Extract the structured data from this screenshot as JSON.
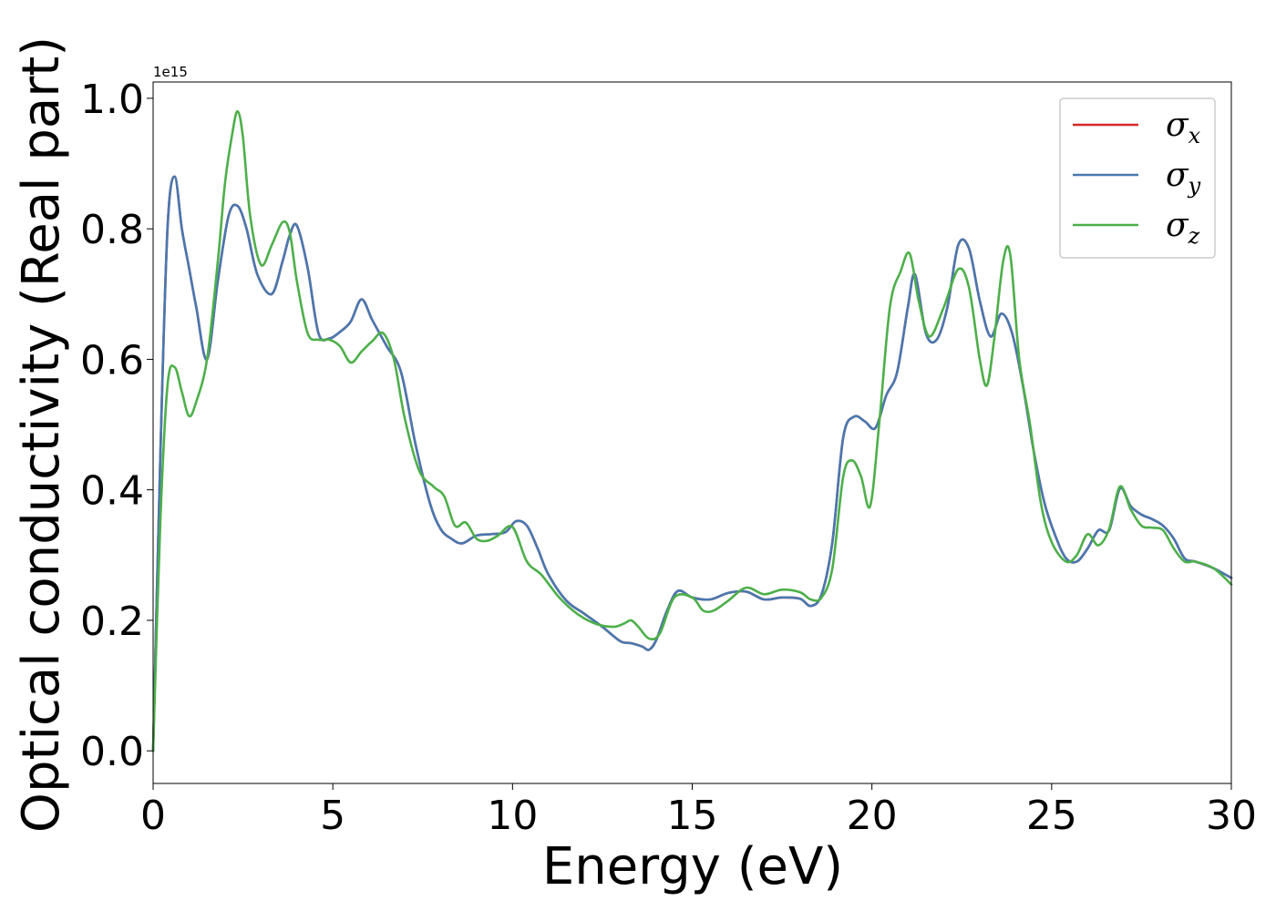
{
  "chart_data": {
    "type": "line",
    "xlabel": "Energy (eV)",
    "ylabel": "Optical conductivity (Real part)",
    "y_offset_text": "1e15",
    "xlim": [
      0,
      30
    ],
    "ylim": [
      -0.05,
      1.025
    ],
    "xticks": [
      0,
      5,
      10,
      15,
      20,
      25,
      30
    ],
    "yticks": [
      0.0,
      0.2,
      0.4,
      0.6,
      0.8,
      1.0
    ],
    "ytick_labels": [
      "0.0",
      "0.2",
      "0.4",
      "0.6",
      "0.8",
      "1.0"
    ],
    "grid": false,
    "legend_position": "top-right",
    "series": [
      {
        "name": "σx",
        "legend_base": "σ",
        "legend_sub": "x",
        "color": "#d62728",
        "x": [
          0,
          0.2,
          0.4,
          0.6,
          0.8,
          1.0,
          1.2,
          1.5,
          1.8,
          2.1,
          2.35,
          2.6,
          2.9,
          3.3,
          3.6,
          3.8,
          4.0,
          4.3,
          4.6,
          4.9,
          5.2,
          5.5,
          5.8,
          6.1,
          6.5,
          6.9,
          7.3,
          7.7,
          8.0,
          8.3,
          8.6,
          9.0,
          9.4,
          9.8,
          10.1,
          10.4,
          10.7,
          11.0,
          11.5,
          12.0,
          12.5,
          13.0,
          13.3,
          13.6,
          13.8,
          14.0,
          14.3,
          14.6,
          15.0,
          15.5,
          16.0,
          16.5,
          17.0,
          17.5,
          18.0,
          18.3,
          18.6,
          18.9,
          19.2,
          19.5,
          19.8,
          20.1,
          20.4,
          20.7,
          21.0,
          21.2,
          21.5,
          21.8,
          22.1,
          22.4,
          22.7,
          23.0,
          23.3,
          23.6,
          23.9,
          24.2,
          24.5,
          24.8,
          25.1,
          25.4,
          25.7,
          26.0,
          26.3,
          26.6,
          26.9,
          27.2,
          27.5,
          27.8,
          28.1,
          28.4,
          28.7,
          29.0,
          29.5,
          30.0
        ],
        "values": [
          0.0,
          0.45,
          0.8,
          0.88,
          0.8,
          0.74,
          0.68,
          0.6,
          0.72,
          0.82,
          0.835,
          0.8,
          0.73,
          0.7,
          0.75,
          0.79,
          0.805,
          0.74,
          0.64,
          0.632,
          0.642,
          0.658,
          0.692,
          0.66,
          0.62,
          0.58,
          0.47,
          0.38,
          0.34,
          0.325,
          0.318,
          0.33,
          0.332,
          0.335,
          0.352,
          0.345,
          0.31,
          0.27,
          0.23,
          0.21,
          0.19,
          0.168,
          0.165,
          0.16,
          0.155,
          0.17,
          0.215,
          0.245,
          0.235,
          0.232,
          0.242,
          0.244,
          0.232,
          0.235,
          0.233,
          0.222,
          0.24,
          0.32,
          0.48,
          0.512,
          0.505,
          0.495,
          0.545,
          0.58,
          0.68,
          0.73,
          0.64,
          0.63,
          0.68,
          0.775,
          0.77,
          0.69,
          0.635,
          0.67,
          0.64,
          0.56,
          0.46,
          0.38,
          0.33,
          0.295,
          0.29,
          0.31,
          0.338,
          0.338,
          0.402,
          0.375,
          0.362,
          0.355,
          0.345,
          0.325,
          0.295,
          0.29,
          0.28,
          0.265
        ]
      },
      {
        "name": "σy",
        "legend_base": "σ",
        "legend_sub": "y",
        "color": "#4878b0",
        "x": [
          0,
          0.2,
          0.4,
          0.6,
          0.8,
          1.0,
          1.2,
          1.5,
          1.8,
          2.1,
          2.35,
          2.6,
          2.9,
          3.3,
          3.6,
          3.8,
          4.0,
          4.3,
          4.6,
          4.9,
          5.2,
          5.5,
          5.8,
          6.1,
          6.5,
          6.9,
          7.3,
          7.7,
          8.0,
          8.3,
          8.6,
          9.0,
          9.4,
          9.8,
          10.1,
          10.4,
          10.7,
          11.0,
          11.5,
          12.0,
          12.5,
          13.0,
          13.3,
          13.6,
          13.8,
          14.0,
          14.3,
          14.6,
          15.0,
          15.5,
          16.0,
          16.5,
          17.0,
          17.5,
          18.0,
          18.3,
          18.6,
          18.9,
          19.2,
          19.5,
          19.8,
          20.1,
          20.4,
          20.7,
          21.0,
          21.2,
          21.5,
          21.8,
          22.1,
          22.4,
          22.7,
          23.0,
          23.3,
          23.6,
          23.9,
          24.2,
          24.5,
          24.8,
          25.1,
          25.4,
          25.7,
          26.0,
          26.3,
          26.6,
          26.9,
          27.2,
          27.5,
          27.8,
          28.1,
          28.4,
          28.7,
          29.0,
          29.5,
          30.0
        ],
        "values": [
          0.0,
          0.45,
          0.8,
          0.88,
          0.8,
          0.74,
          0.68,
          0.6,
          0.72,
          0.82,
          0.835,
          0.8,
          0.73,
          0.7,
          0.75,
          0.79,
          0.805,
          0.74,
          0.64,
          0.632,
          0.642,
          0.658,
          0.692,
          0.66,
          0.62,
          0.58,
          0.47,
          0.38,
          0.34,
          0.325,
          0.318,
          0.33,
          0.332,
          0.335,
          0.352,
          0.345,
          0.31,
          0.27,
          0.23,
          0.21,
          0.19,
          0.168,
          0.165,
          0.16,
          0.155,
          0.17,
          0.215,
          0.245,
          0.235,
          0.232,
          0.242,
          0.244,
          0.232,
          0.235,
          0.233,
          0.222,
          0.24,
          0.32,
          0.48,
          0.512,
          0.505,
          0.495,
          0.545,
          0.58,
          0.68,
          0.73,
          0.64,
          0.63,
          0.68,
          0.775,
          0.77,
          0.69,
          0.635,
          0.67,
          0.64,
          0.56,
          0.46,
          0.38,
          0.33,
          0.295,
          0.29,
          0.31,
          0.338,
          0.338,
          0.402,
          0.375,
          0.362,
          0.355,
          0.345,
          0.325,
          0.295,
          0.29,
          0.28,
          0.265
        ]
      },
      {
        "name": "σz",
        "legend_base": "σ",
        "legend_sub": "z",
        "color": "#4daf4a",
        "x": [
          0,
          0.2,
          0.4,
          0.6,
          0.8,
          1.0,
          1.2,
          1.5,
          1.8,
          2.0,
          2.2,
          2.35,
          2.5,
          2.7,
          3.0,
          3.3,
          3.6,
          3.8,
          4.0,
          4.3,
          4.6,
          4.9,
          5.2,
          5.5,
          5.8,
          6.1,
          6.4,
          6.7,
          7.0,
          7.4,
          7.8,
          8.1,
          8.4,
          8.7,
          9.0,
          9.3,
          9.6,
          10.0,
          10.4,
          10.8,
          11.3,
          11.8,
          12.3,
          12.8,
          13.1,
          13.3,
          13.5,
          13.8,
          14.1,
          14.5,
          15.0,
          15.3,
          15.6,
          16.0,
          16.5,
          17.0,
          17.5,
          18.0,
          18.3,
          18.6,
          18.9,
          19.2,
          19.45,
          19.7,
          19.95,
          20.2,
          20.5,
          20.8,
          21.05,
          21.3,
          21.6,
          22.0,
          22.4,
          22.7,
          23.0,
          23.2,
          23.4,
          23.65,
          23.85,
          24.1,
          24.4,
          24.7,
          25.0,
          25.4,
          25.7,
          26.0,
          26.3,
          26.6,
          26.9,
          27.2,
          27.5,
          27.8,
          28.1,
          28.4,
          28.7,
          29.0,
          29.5,
          30.0
        ],
        "values": [
          0.0,
          0.35,
          0.56,
          0.588,
          0.55,
          0.513,
          0.535,
          0.6,
          0.75,
          0.87,
          0.945,
          0.98,
          0.94,
          0.82,
          0.745,
          0.775,
          0.81,
          0.795,
          0.72,
          0.64,
          0.63,
          0.63,
          0.62,
          0.595,
          0.612,
          0.628,
          0.64,
          0.6,
          0.51,
          0.43,
          0.405,
          0.39,
          0.345,
          0.35,
          0.325,
          0.322,
          0.33,
          0.343,
          0.29,
          0.27,
          0.235,
          0.21,
          0.195,
          0.19,
          0.195,
          0.2,
          0.19,
          0.172,
          0.18,
          0.235,
          0.235,
          0.215,
          0.215,
          0.23,
          0.25,
          0.24,
          0.247,
          0.243,
          0.232,
          0.235,
          0.28,
          0.42,
          0.445,
          0.42,
          0.375,
          0.5,
          0.68,
          0.735,
          0.762,
          0.69,
          0.635,
          0.68,
          0.738,
          0.71,
          0.6,
          0.56,
          0.63,
          0.75,
          0.76,
          0.6,
          0.5,
          0.38,
          0.32,
          0.29,
          0.3,
          0.332,
          0.315,
          0.34,
          0.405,
          0.37,
          0.345,
          0.342,
          0.338,
          0.31,
          0.29,
          0.29,
          0.28,
          0.255
        ]
      }
    ]
  }
}
